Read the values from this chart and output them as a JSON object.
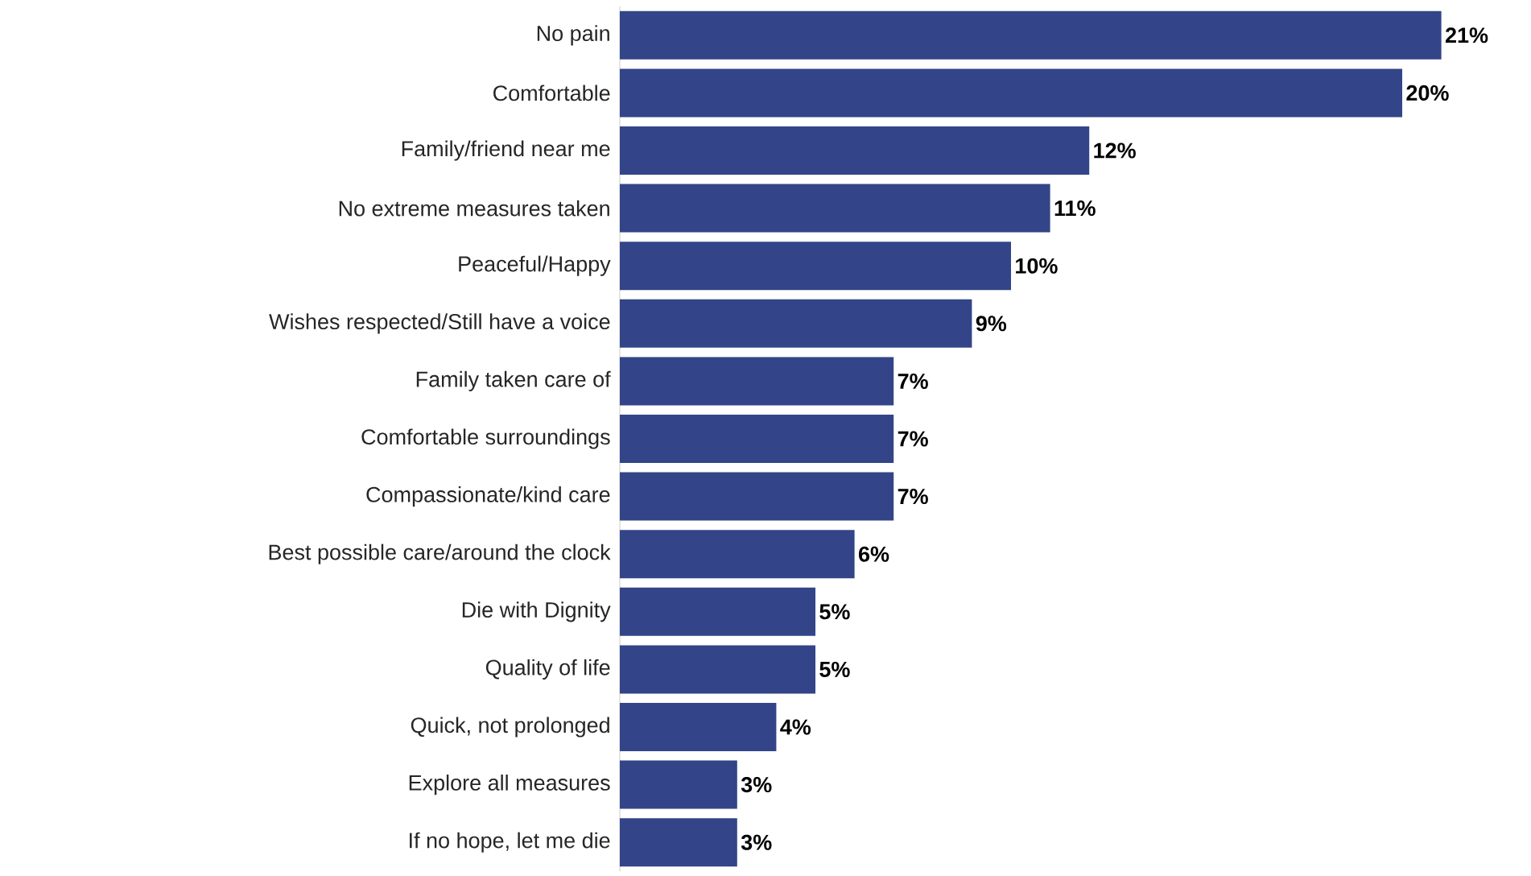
{
  "chart_data": {
    "type": "bar",
    "orientation": "horizontal",
    "categories": [
      "No pain",
      "Comfortable",
      "Family/friend near me",
      "No extreme measures taken",
      "Peaceful/Happy",
      "Wishes respected/Still have a voice",
      "Family taken care of",
      "Comfortable surroundings",
      "Compassionate/kind care",
      "Best possible care/around the clock",
      "Die with Dignity",
      "Quality of life",
      "Quick, not prolonged",
      "Explore all measures",
      "If no hope, let me die"
    ],
    "values": [
      21,
      20,
      12,
      11,
      10,
      9,
      7,
      7,
      7,
      6,
      5,
      5,
      4,
      3,
      3
    ],
    "value_labels": [
      "21%",
      "20%",
      "12%",
      "11%",
      "10%",
      "9%",
      "7%",
      "7%",
      "7%",
      "6%",
      "5%",
      "5%",
      "4%",
      "3%",
      "3%"
    ],
    "color": "#334588",
    "tick_labels": "y"
  }
}
